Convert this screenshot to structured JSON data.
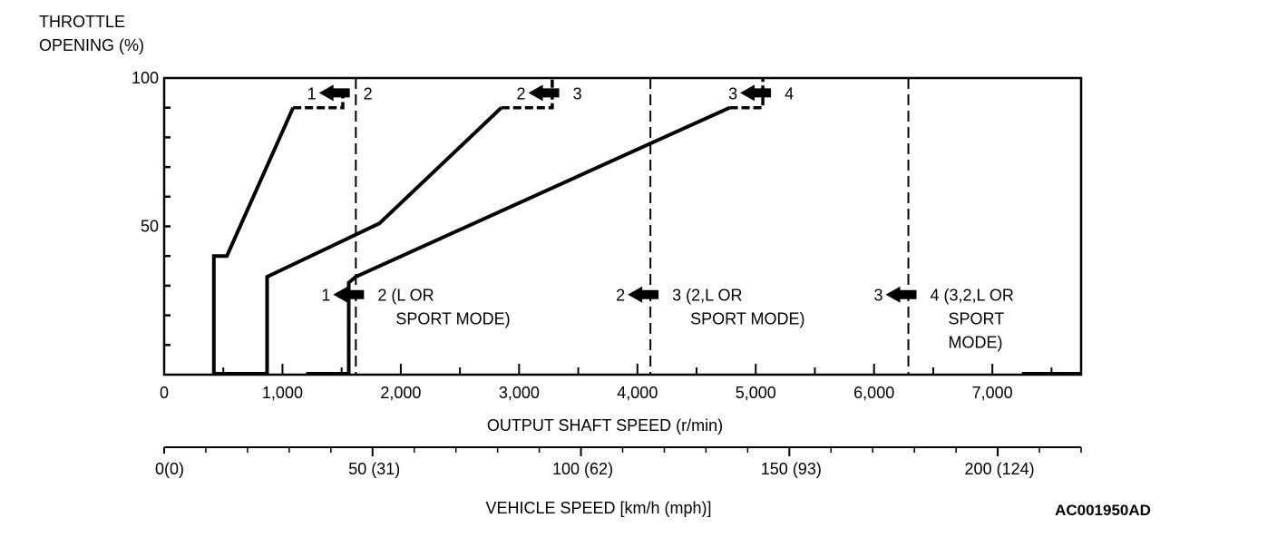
{
  "chart_data": {
    "type": "line",
    "title": "",
    "ylabel_lines": [
      "THROTTLE",
      "OPENING (%)"
    ],
    "xlabel": "OUTPUT SHAFT SPEED (r/min)",
    "x2label": "VEHICLE SPEED [km/h (mph)]",
    "figure_code": "AC001950AD",
    "xlim": [
      0,
      7750
    ],
    "ylim": [
      0,
      100
    ],
    "x2lim": [
      0,
      220
    ],
    "grid": false,
    "yticks": [
      0,
      10,
      20,
      30,
      40,
      50,
      60,
      70,
      80,
      90,
      100
    ],
    "ytick_labels": [
      {
        "v": 50,
        "t": "50"
      },
      {
        "v": 100,
        "t": "100"
      }
    ],
    "xticks_minor": [
      500,
      1500,
      2500,
      3500,
      4500,
      5500,
      6500,
      7500
    ],
    "xtick_labels": [
      {
        "v": 0,
        "t": "0"
      },
      {
        "v": 1000,
        "t": "1,000"
      },
      {
        "v": 2000,
        "t": "2,000"
      },
      {
        "v": 3000,
        "t": "3,000"
      },
      {
        "v": 4000,
        "t": "4,000"
      },
      {
        "v": 5000,
        "t": "5,000"
      },
      {
        "v": 6000,
        "t": "6,000"
      },
      {
        "v": 7000,
        "t": "7,000"
      }
    ],
    "x2ticks_minor": [
      10,
      20,
      30,
      40,
      60,
      70,
      80,
      90,
      110,
      120,
      130,
      140,
      160,
      170,
      180,
      190,
      210,
      220
    ],
    "x2tick_labels": [
      {
        "v": 0,
        "t": "0(0)"
      },
      {
        "v": 50,
        "t": "50 (31)"
      },
      {
        "v": 100,
        "t": "100 (62)"
      },
      {
        "v": 150,
        "t": "150 (93)"
      },
      {
        "v": 200,
        "t": "200 (124)"
      }
    ],
    "series": [
      {
        "name": "1-2 downshift",
        "style": "solid",
        "points": [
          [
            420,
            0
          ],
          [
            420,
            40
          ],
          [
            530,
            40
          ],
          [
            1090,
            90
          ]
        ],
        "dashed_tail": [
          [
            1090,
            90
          ],
          [
            1510,
            90
          ],
          [
            1510,
            97
          ]
        ]
      },
      {
        "name": "2-3 downshift",
        "style": "solid",
        "points": [
          [
            870,
            0
          ],
          [
            870,
            33
          ],
          [
            1820,
            51
          ],
          [
            2850,
            90
          ]
        ],
        "dashed_tail": [
          [
            2850,
            90
          ],
          [
            3280,
            90
          ],
          [
            3280,
            100
          ]
        ]
      },
      {
        "name": "3-4 downshift",
        "style": "solid",
        "points": [
          [
            1560,
            0
          ],
          [
            1560,
            31
          ],
          [
            1620,
            33
          ],
          [
            4780,
            90
          ]
        ],
        "dashed_tail": [
          [
            4780,
            90
          ],
          [
            5060,
            90
          ],
          [
            5060,
            100
          ]
        ]
      },
      {
        "name": "1-2 upshift (L or sport mode)",
        "style": "dashed",
        "x": 1620
      },
      {
        "name": "2-3 upshift (2,L or sport mode)",
        "style": "dashed",
        "x": 4110
      },
      {
        "name": "3-4 upshift (3,2,L or sport mode)",
        "style": "dashed",
        "x": 6290
      }
    ],
    "baseline_segments": [
      [
        420,
        870
      ],
      [
        1200,
        1560
      ],
      [
        7250,
        7750
      ]
    ],
    "annotations": [
      {
        "id": "a12-top",
        "from": "1",
        "to": "2",
        "x": 1500,
        "y": 95,
        "lines": []
      },
      {
        "id": "a23-top",
        "from": "2",
        "to": "3",
        "x": 3270,
        "y": 95,
        "lines": []
      },
      {
        "id": "a34-top",
        "from": "3",
        "to": "4",
        "x": 5060,
        "y": 95,
        "lines": []
      },
      {
        "id": "a12-low",
        "from": "1",
        "to": "2 (L OR",
        "x": 1620,
        "y": 27,
        "lines": [
          "SPORT MODE)"
        ]
      },
      {
        "id": "a23-low",
        "from": "2",
        "to": "3 (2,L OR",
        "x": 4110,
        "y": 27,
        "lines": [
          "SPORT MODE)"
        ]
      },
      {
        "id": "a34-low",
        "from": "3",
        "to": "4 (3,2,L OR",
        "x": 6290,
        "y": 27,
        "lines": [
          "SPORT",
          "MODE)"
        ]
      }
    ]
  }
}
